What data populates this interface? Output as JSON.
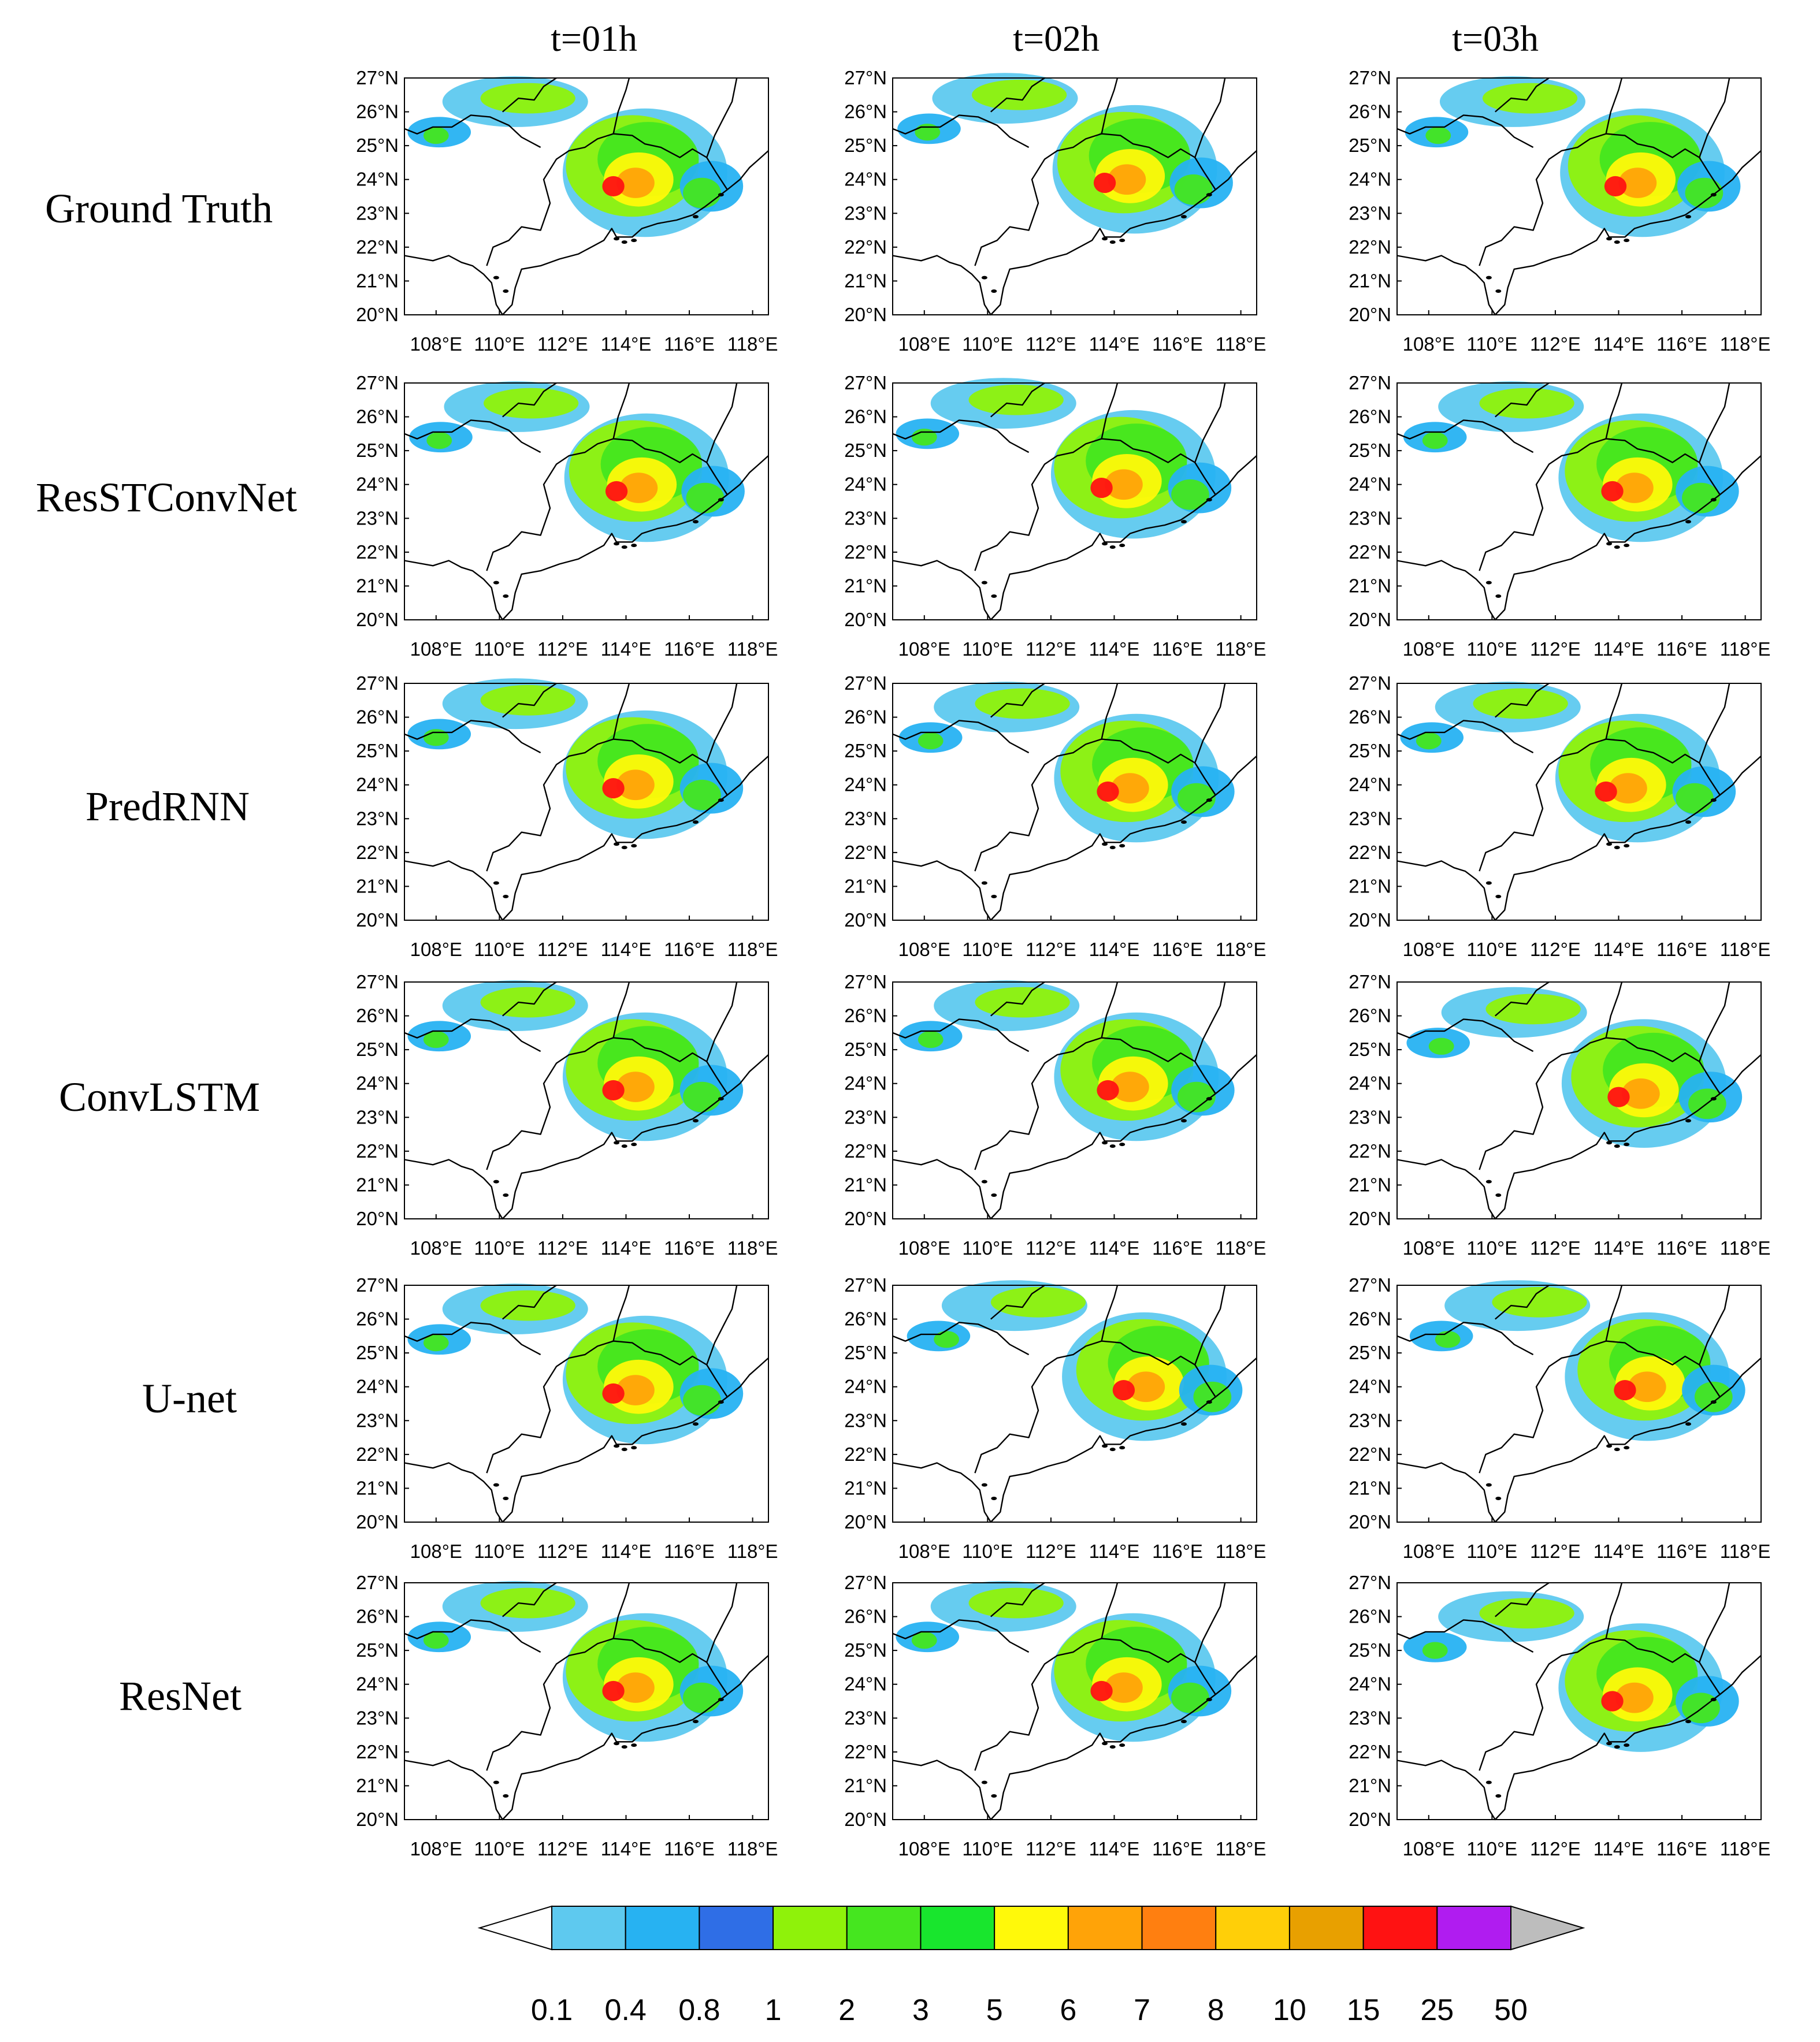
{
  "figure": {
    "column_titles": [
      "t=01h",
      "t=02h",
      "t=03h"
    ],
    "row_titles": [
      "Ground Truth",
      "ResSTConvNet",
      "PredRNN",
      "ConvLSTM",
      "U-net",
      "ResNet"
    ],
    "lat_ticks": [
      "27°N",
      "26°N",
      "25°N",
      "24°N",
      "23°N",
      "22°N",
      "21°N",
      "20°N"
    ],
    "lon_ticks": [
      "108°E",
      "110°E",
      "112°E",
      "114°E",
      "116°E",
      "118°E"
    ],
    "extent": {
      "lon": [
        107,
        118.5
      ],
      "lat": [
        20,
        27
      ]
    }
  },
  "colorbar": {
    "labels": [
      "0.1",
      "0.4",
      "0.8",
      "1",
      "2",
      "3",
      "5",
      "6",
      "7",
      "8",
      "10",
      "15",
      "25",
      "50"
    ],
    "colors": [
      "#5ec9ef",
      "#27b2f2",
      "#2f6ee6",
      "#8ff20a",
      "#45e61f",
      "#18e62d",
      "#fff90a",
      "#ffa308",
      "#ff7f10",
      "#ffcf08",
      "#e8a000",
      "#ff1212",
      "#b01cf0"
    ],
    "under_color": "#ffffff",
    "over_color": "#bdbdbd"
  },
  "palette": {
    "levels": [
      "#5ec9ef",
      "#27b2f2",
      "#2f6ee6",
      "#8ff20a",
      "#45e61f",
      "#18e62d",
      "#fff90a",
      "#ffa308",
      "#ff7f10",
      "#ffcf08",
      "#e8a000",
      "#ff1212",
      "#b01cf0"
    ]
  }
}
